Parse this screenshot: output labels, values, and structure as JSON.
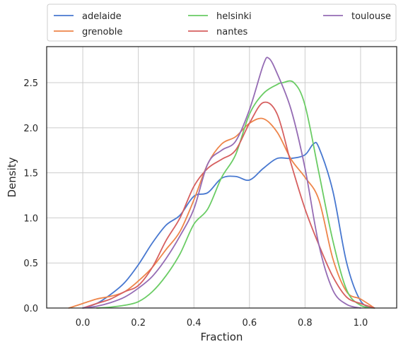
{
  "chart_data": {
    "type": "line",
    "title": "",
    "xlabel": "Fraction",
    "ylabel": "Density",
    "xlim": [
      -0.13,
      1.13
    ],
    "ylim": [
      0,
      2.9
    ],
    "xticks": [
      0.0,
      0.2,
      0.4,
      0.6,
      0.8,
      1.0
    ],
    "xtick_labels": [
      "0.0",
      "0.2",
      "0.4",
      "0.6",
      "0.8",
      "1.0"
    ],
    "yticks": [
      0.0,
      0.5,
      1.0,
      1.5,
      2.0,
      2.5
    ],
    "ytick_labels": [
      "0.0",
      "0.5",
      "1.0",
      "1.5",
      "2.0",
      "2.5"
    ],
    "grid": true,
    "legend_position": "top, above plot, 3 columns",
    "series": [
      {
        "name": "adelaide",
        "color": "#4878d0",
        "x": [
          0.0,
          0.05,
          0.1,
          0.15,
          0.2,
          0.25,
          0.3,
          0.35,
          0.4,
          0.45,
          0.5,
          0.55,
          0.6,
          0.65,
          0.7,
          0.75,
          0.8,
          0.83,
          0.85,
          0.9,
          0.95,
          1.0,
          1.05
        ],
        "y": [
          0.0,
          0.05,
          0.15,
          0.28,
          0.48,
          0.72,
          0.92,
          1.03,
          1.24,
          1.28,
          1.44,
          1.46,
          1.42,
          1.55,
          1.66,
          1.66,
          1.7,
          1.82,
          1.78,
          1.3,
          0.5,
          0.08,
          0.0
        ]
      },
      {
        "name": "grenoble",
        "color": "#ee854a",
        "x": [
          -0.05,
          0.0,
          0.05,
          0.1,
          0.15,
          0.2,
          0.25,
          0.3,
          0.35,
          0.4,
          0.45,
          0.5,
          0.55,
          0.6,
          0.65,
          0.7,
          0.75,
          0.8,
          0.85,
          0.9,
          0.95,
          1.0,
          1.05
        ],
        "y": [
          0.0,
          0.05,
          0.1,
          0.13,
          0.18,
          0.3,
          0.45,
          0.65,
          0.85,
          1.2,
          1.6,
          1.82,
          1.9,
          2.05,
          2.1,
          1.95,
          1.65,
          1.45,
          1.2,
          0.55,
          0.18,
          0.1,
          0.0
        ]
      },
      {
        "name": "helsinki",
        "color": "#6acc64",
        "x": [
          0.05,
          0.1,
          0.15,
          0.2,
          0.25,
          0.3,
          0.35,
          0.4,
          0.45,
          0.5,
          0.55,
          0.6,
          0.65,
          0.7,
          0.72,
          0.76,
          0.8,
          0.85,
          0.9,
          0.95,
          1.0,
          1.05
        ],
        "y": [
          0.0,
          0.01,
          0.03,
          0.07,
          0.18,
          0.36,
          0.6,
          0.93,
          1.1,
          1.45,
          1.7,
          2.15,
          2.38,
          2.48,
          2.5,
          2.5,
          2.25,
          1.5,
          0.75,
          0.2,
          0.03,
          0.0
        ]
      },
      {
        "name": "nantes",
        "color": "#d65f5f",
        "x": [
          0.0,
          0.05,
          0.1,
          0.15,
          0.2,
          0.25,
          0.3,
          0.35,
          0.4,
          0.45,
          0.5,
          0.55,
          0.6,
          0.65,
          0.7,
          0.75,
          0.8,
          0.85,
          0.9,
          0.95,
          1.0,
          1.05
        ],
        "y": [
          0.0,
          0.05,
          0.1,
          0.18,
          0.25,
          0.45,
          0.75,
          1.0,
          1.35,
          1.55,
          1.65,
          1.75,
          2.05,
          2.28,
          2.15,
          1.6,
          1.1,
          0.7,
          0.35,
          0.12,
          0.05,
          0.0
        ]
      },
      {
        "name": "toulouse",
        "color": "#956cb4",
        "x": [
          0.0,
          0.05,
          0.1,
          0.15,
          0.2,
          0.25,
          0.3,
          0.35,
          0.4,
          0.45,
          0.5,
          0.55,
          0.6,
          0.65,
          0.67,
          0.7,
          0.75,
          0.8,
          0.85,
          0.9,
          0.95,
          1.0
        ],
        "y": [
          0.0,
          0.02,
          0.06,
          0.12,
          0.22,
          0.35,
          0.55,
          0.8,
          1.1,
          1.6,
          1.75,
          1.85,
          2.2,
          2.7,
          2.77,
          2.6,
          2.2,
          1.55,
          0.7,
          0.2,
          0.04,
          0.0
        ]
      }
    ]
  }
}
